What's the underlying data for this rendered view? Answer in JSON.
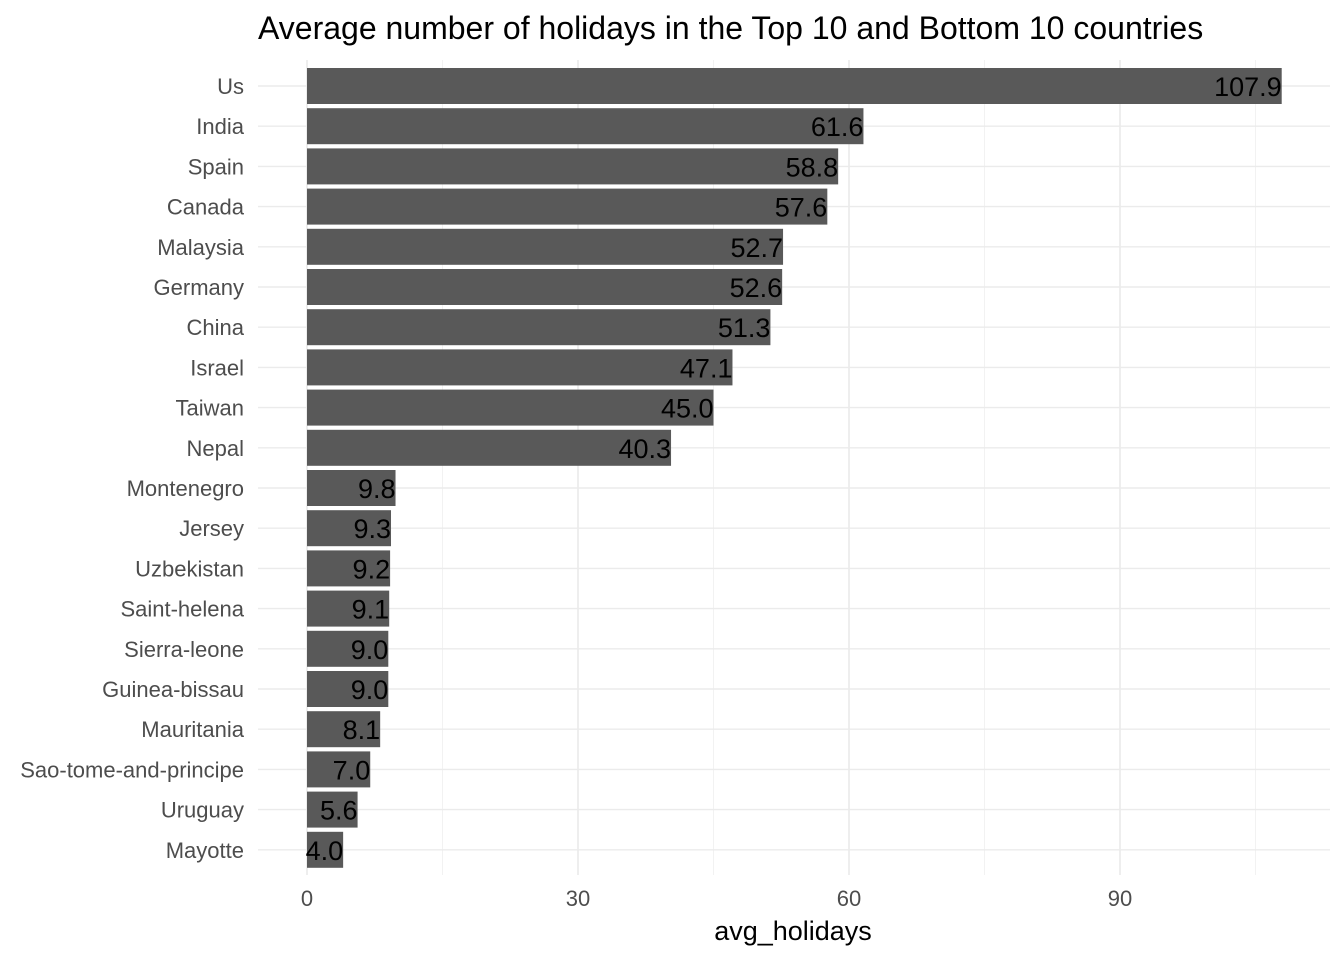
{
  "chart_data": {
    "type": "bar",
    "orientation": "horizontal",
    "title": "Average number of holidays in the Top 10 and Bottom 10 countries",
    "xlabel": "avg_holidays",
    "ylabel": "",
    "xlim": [
      0,
      110
    ],
    "xticks": [
      0,
      30,
      60,
      90
    ],
    "grid": true,
    "legend": "none",
    "bar_color": "#595959",
    "categories": [
      "Us",
      "India",
      "Spain",
      "Canada",
      "Malaysia",
      "Germany",
      "China",
      "Israel",
      "Taiwan",
      "Nepal",
      "Montenegro",
      "Jersey",
      "Uzbekistan",
      "Saint-helena",
      "Sierra-leone",
      "Guinea-bissau",
      "Mauritania",
      "Sao-tome-and-principe",
      "Uruguay",
      "Mayotte"
    ],
    "values": [
      107.9,
      61.6,
      58.8,
      57.6,
      52.7,
      52.6,
      51.3,
      47.1,
      45.0,
      40.3,
      9.8,
      9.3,
      9.2,
      9.1,
      9.0,
      9.0,
      8.1,
      7.0,
      5.6,
      4.0
    ],
    "value_labels": [
      "107.9",
      "61.6",
      "58.8",
      "57.6",
      "52.7",
      "52.6",
      "51.3",
      "47.1",
      "45.0",
      "40.3",
      "9.8",
      "9.3",
      "9.2",
      "9.1",
      "9.0",
      "9.0",
      "8.1",
      "7.0",
      "5.6",
      "4.0"
    ]
  }
}
